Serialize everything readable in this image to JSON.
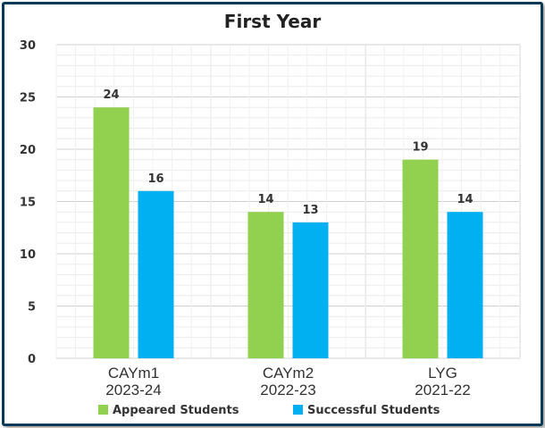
{
  "chart_data": {
    "type": "bar",
    "title": "First Year",
    "categories": [
      [
        "CAYm1",
        "2023-24"
      ],
      [
        "CAYm2",
        "2022-23"
      ],
      [
        "LYG",
        "2021-22"
      ]
    ],
    "series": [
      {
        "name": "Appeared Students",
        "values": [
          24,
          14,
          19
        ],
        "color": "#92d050"
      },
      {
        "name": "Successful Students",
        "values": [
          16,
          13,
          14
        ],
        "color": "#00b0f0"
      }
    ],
    "ylim": [
      0,
      30
    ],
    "yticks": [
      0,
      5,
      10,
      15,
      20,
      25,
      30
    ],
    "grid": true,
    "legend": "bottom"
  }
}
